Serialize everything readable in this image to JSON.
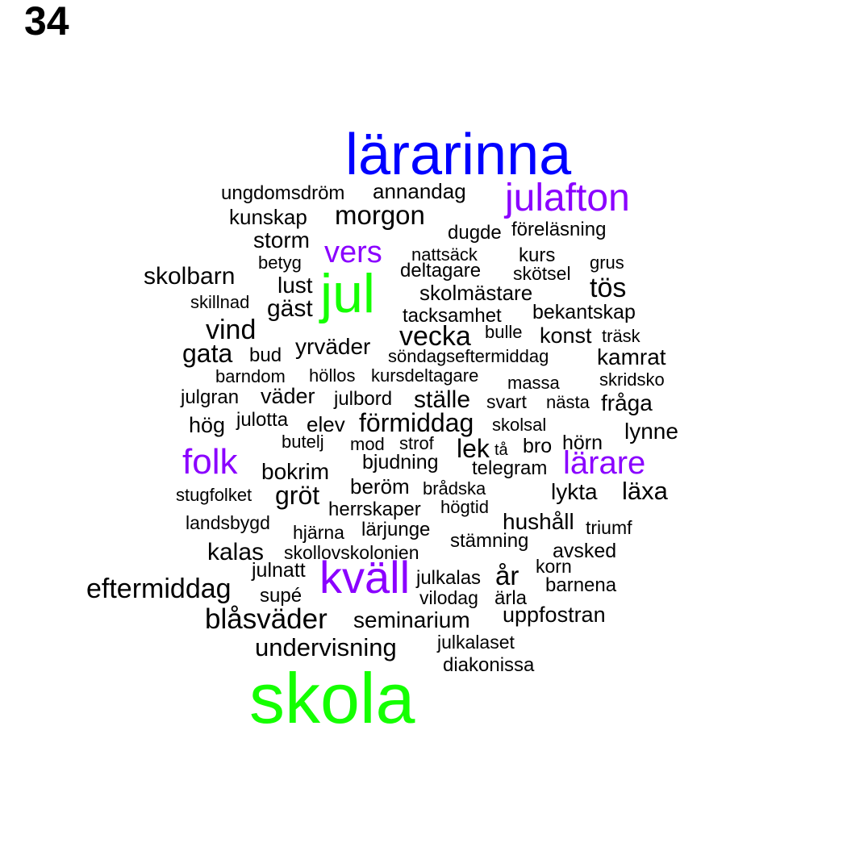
{
  "page_number": "34",
  "colors": {
    "primary": "#0000ff",
    "secondary": "#8a00ff",
    "accent": "#14ff00",
    "default": "#000000"
  },
  "words": [
    {
      "text": "lärarinna",
      "tier": "primary"
    },
    {
      "text": "ungdomsdröm",
      "tier": "default"
    },
    {
      "text": "annandag",
      "tier": "default"
    },
    {
      "text": "julafton",
      "tier": "secondary"
    },
    {
      "text": "kunskap",
      "tier": "default"
    },
    {
      "text": "morgon",
      "tier": "default"
    },
    {
      "text": "dugde",
      "tier": "default"
    },
    {
      "text": "föreläsning",
      "tier": "default"
    },
    {
      "text": "storm",
      "tier": "default"
    },
    {
      "text": "vers",
      "tier": "secondary"
    },
    {
      "text": "nattsäck",
      "tier": "default"
    },
    {
      "text": "kurs",
      "tier": "default"
    },
    {
      "text": "betyg",
      "tier": "default"
    },
    {
      "text": "deltagare",
      "tier": "default"
    },
    {
      "text": "skötsel",
      "tier": "default"
    },
    {
      "text": "grus",
      "tier": "default"
    },
    {
      "text": "skolbarn",
      "tier": "default"
    },
    {
      "text": "lust",
      "tier": "default"
    },
    {
      "text": "jul",
      "tier": "accent"
    },
    {
      "text": "skolmästare",
      "tier": "default"
    },
    {
      "text": "tös",
      "tier": "default"
    },
    {
      "text": "skillnad",
      "tier": "default"
    },
    {
      "text": "gäst",
      "tier": "default"
    },
    {
      "text": "tacksamhet",
      "tier": "default"
    },
    {
      "text": "bekantskap",
      "tier": "default"
    },
    {
      "text": "vind",
      "tier": "default"
    },
    {
      "text": "vecka",
      "tier": "default"
    },
    {
      "text": "bulle",
      "tier": "default"
    },
    {
      "text": "konst",
      "tier": "default"
    },
    {
      "text": "träsk",
      "tier": "default"
    },
    {
      "text": "gata",
      "tier": "default"
    },
    {
      "text": "bud",
      "tier": "default"
    },
    {
      "text": "yrväder",
      "tier": "default"
    },
    {
      "text": "söndagseftermiddag",
      "tier": "default"
    },
    {
      "text": "kamrat",
      "tier": "default"
    },
    {
      "text": "barndom",
      "tier": "default"
    },
    {
      "text": "höllos",
      "tier": "default"
    },
    {
      "text": "kursdeltagare",
      "tier": "default"
    },
    {
      "text": "massa",
      "tier": "default"
    },
    {
      "text": "skridsko",
      "tier": "default"
    },
    {
      "text": "julgran",
      "tier": "default"
    },
    {
      "text": "väder",
      "tier": "default"
    },
    {
      "text": "julbord",
      "tier": "default"
    },
    {
      "text": "ställe",
      "tier": "default"
    },
    {
      "text": "svart",
      "tier": "default"
    },
    {
      "text": "nästa",
      "tier": "default"
    },
    {
      "text": "fråga",
      "tier": "default"
    },
    {
      "text": "hög",
      "tier": "default"
    },
    {
      "text": "julotta",
      "tier": "default"
    },
    {
      "text": "elev",
      "tier": "default"
    },
    {
      "text": "förmiddag",
      "tier": "default"
    },
    {
      "text": "skolsal",
      "tier": "default"
    },
    {
      "text": "lynne",
      "tier": "default"
    },
    {
      "text": "butelj",
      "tier": "default"
    },
    {
      "text": "mod",
      "tier": "default"
    },
    {
      "text": "strof",
      "tier": "default"
    },
    {
      "text": "lek",
      "tier": "default"
    },
    {
      "text": "tå",
      "tier": "default"
    },
    {
      "text": "bro",
      "tier": "default"
    },
    {
      "text": "hörn",
      "tier": "default"
    },
    {
      "text": "folk",
      "tier": "secondary"
    },
    {
      "text": "bjudning",
      "tier": "default"
    },
    {
      "text": "bokrim",
      "tier": "default"
    },
    {
      "text": "telegram",
      "tier": "default"
    },
    {
      "text": "lärare",
      "tier": "secondary"
    },
    {
      "text": "beröm",
      "tier": "default"
    },
    {
      "text": "brådska",
      "tier": "default"
    },
    {
      "text": "lykta",
      "tier": "default"
    },
    {
      "text": "läxa",
      "tier": "default"
    },
    {
      "text": "stugfolket",
      "tier": "default"
    },
    {
      "text": "gröt",
      "tier": "default"
    },
    {
      "text": "herrskaper",
      "tier": "default"
    },
    {
      "text": "högtid",
      "tier": "default"
    },
    {
      "text": "landsbygd",
      "tier": "default"
    },
    {
      "text": "hjärna",
      "tier": "default"
    },
    {
      "text": "lärjunge",
      "tier": "default"
    },
    {
      "text": "hushåll",
      "tier": "default"
    },
    {
      "text": "triumf",
      "tier": "default"
    },
    {
      "text": "stämning",
      "tier": "default"
    },
    {
      "text": "kalas",
      "tier": "default"
    },
    {
      "text": "skollovskolonien",
      "tier": "default"
    },
    {
      "text": "avsked",
      "tier": "default"
    },
    {
      "text": "julnatt",
      "tier": "default"
    },
    {
      "text": "kväll",
      "tier": "secondary"
    },
    {
      "text": "år",
      "tier": "default"
    },
    {
      "text": "korn",
      "tier": "default"
    },
    {
      "text": "julkalas",
      "tier": "default"
    },
    {
      "text": "eftermiddag",
      "tier": "default"
    },
    {
      "text": "barnena",
      "tier": "default"
    },
    {
      "text": "supé",
      "tier": "default"
    },
    {
      "text": "vilodag",
      "tier": "default"
    },
    {
      "text": "ärla",
      "tier": "default"
    },
    {
      "text": "blåsväder",
      "tier": "default"
    },
    {
      "text": "seminarium",
      "tier": "default"
    },
    {
      "text": "uppfostran",
      "tier": "default"
    },
    {
      "text": "julkalaset",
      "tier": "default"
    },
    {
      "text": "undervisning",
      "tier": "default"
    },
    {
      "text": "diakonissa",
      "tier": "default"
    },
    {
      "text": "skola",
      "tier": "accent"
    }
  ]
}
